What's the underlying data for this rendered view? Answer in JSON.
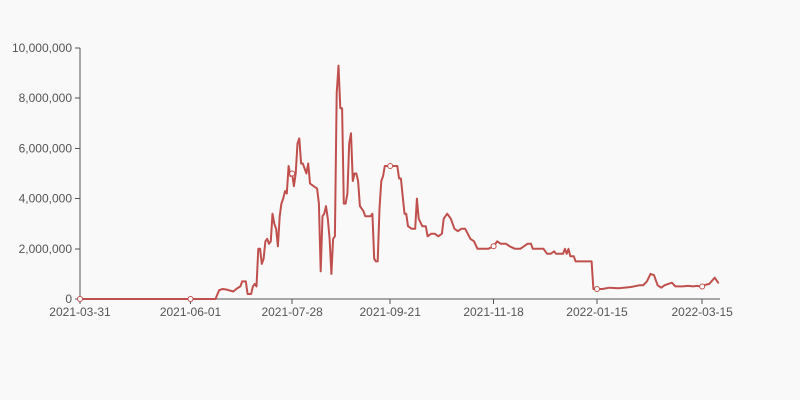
{
  "chart_data": {
    "type": "line",
    "title": "",
    "xlabel": "",
    "ylabel": "",
    "x_start": "2021-03-31",
    "x_end": "2022-03-25",
    "xlim": [
      "2021-03-31",
      "2022-03-25"
    ],
    "ylim": [
      0,
      10000000
    ],
    "x_ticks": [
      "2021-03-31",
      "2021-06-01",
      "2021-07-28",
      "2021-09-21",
      "2021-11-18",
      "2022-01-15",
      "2022-03-15"
    ],
    "y_ticks": [
      "0",
      "2,000,000",
      "4,000,000",
      "6,000,000",
      "8,000,000",
      "10,000,000"
    ],
    "y_tick_values": [
      0,
      2000000,
      4000000,
      6000000,
      8000000,
      10000000
    ],
    "grid": false,
    "legend": "none",
    "line_color": "#c0504d",
    "series": [
      {
        "points": [
          [
            "2021-03-31",
            0
          ],
          [
            "2021-04-20",
            0
          ],
          [
            "2021-05-10",
            0
          ],
          [
            "2021-06-01",
            0
          ],
          [
            "2021-06-15",
            0
          ],
          [
            "2021-06-17",
            350000
          ],
          [
            "2021-06-19",
            400000
          ],
          [
            "2021-06-21",
            380000
          ],
          [
            "2021-06-25",
            300000
          ],
          [
            "2021-06-27",
            420000
          ],
          [
            "2021-06-29",
            500000
          ],
          [
            "2021-06-30",
            700000
          ],
          [
            "2021-07-02",
            700000
          ],
          [
            "2021-07-03",
            200000
          ],
          [
            "2021-07-05",
            200000
          ],
          [
            "2021-07-06",
            500000
          ],
          [
            "2021-07-07",
            600000
          ],
          [
            "2021-07-08",
            500000
          ],
          [
            "2021-07-09",
            2000000
          ],
          [
            "2021-07-10",
            2000000
          ],
          [
            "2021-07-11",
            1400000
          ],
          [
            "2021-07-12",
            1600000
          ],
          [
            "2021-07-13",
            2300000
          ],
          [
            "2021-07-14",
            2400000
          ],
          [
            "2021-07-15",
            2200000
          ],
          [
            "2021-07-16",
            2300000
          ],
          [
            "2021-07-17",
            3400000
          ],
          [
            "2021-07-18",
            3000000
          ],
          [
            "2021-07-19",
            2800000
          ],
          [
            "2021-07-20",
            2100000
          ],
          [
            "2021-07-21",
            3300000
          ],
          [
            "2021-07-22",
            3800000
          ],
          [
            "2021-07-23",
            4000000
          ],
          [
            "2021-07-24",
            4300000
          ],
          [
            "2021-07-25",
            4200000
          ],
          [
            "2021-07-26",
            5300000
          ],
          [
            "2021-07-27",
            4900000
          ],
          [
            "2021-07-28",
            5000000
          ],
          [
            "2021-07-29",
            4500000
          ],
          [
            "2021-07-30",
            5000000
          ],
          [
            "2021-07-31",
            6200000
          ],
          [
            "2021-08-01",
            6400000
          ],
          [
            "2021-08-02",
            5400000
          ],
          [
            "2021-08-03",
            5400000
          ],
          [
            "2021-08-04",
            5200000
          ],
          [
            "2021-08-05",
            5000000
          ],
          [
            "2021-08-06",
            5400000
          ],
          [
            "2021-08-07",
            4600000
          ],
          [
            "2021-08-09",
            4500000
          ],
          [
            "2021-08-11",
            4400000
          ],
          [
            "2021-08-12",
            3800000
          ],
          [
            "2021-08-13",
            1100000
          ],
          [
            "2021-08-14",
            3300000
          ],
          [
            "2021-08-15",
            3400000
          ],
          [
            "2021-08-16",
            3700000
          ],
          [
            "2021-08-17",
            3200000
          ],
          [
            "2021-08-18",
            2400000
          ],
          [
            "2021-08-19",
            1000000
          ],
          [
            "2021-08-20",
            2400000
          ],
          [
            "2021-08-21",
            2500000
          ],
          [
            "2021-08-22",
            8200000
          ],
          [
            "2021-08-23",
            9300000
          ],
          [
            "2021-08-24",
            7600000
          ],
          [
            "2021-08-25",
            7600000
          ],
          [
            "2021-08-26",
            3800000
          ],
          [
            "2021-08-27",
            3800000
          ],
          [
            "2021-08-28",
            4200000
          ],
          [
            "2021-08-29",
            6200000
          ],
          [
            "2021-08-30",
            6600000
          ],
          [
            "2021-08-31",
            4700000
          ],
          [
            "2021-09-01",
            5000000
          ],
          [
            "2021-09-02",
            5000000
          ],
          [
            "2021-09-03",
            4700000
          ],
          [
            "2021-09-04",
            3700000
          ],
          [
            "2021-09-06",
            3500000
          ],
          [
            "2021-09-07",
            3300000
          ],
          [
            "2021-09-10",
            3300000
          ],
          [
            "2021-09-11",
            3400000
          ],
          [
            "2021-09-12",
            1600000
          ],
          [
            "2021-09-13",
            1500000
          ],
          [
            "2021-09-14",
            1500000
          ],
          [
            "2021-09-15",
            3600000
          ],
          [
            "2021-09-16",
            4700000
          ],
          [
            "2021-09-17",
            4900000
          ],
          [
            "2021-09-18",
            5300000
          ],
          [
            "2021-09-25",
            5300000
          ],
          [
            "2021-09-26",
            4800000
          ],
          [
            "2021-09-27",
            4800000
          ],
          [
            "2021-09-29",
            3400000
          ],
          [
            "2021-09-30",
            3400000
          ],
          [
            "2021-10-01",
            2900000
          ],
          [
            "2021-10-03",
            2800000
          ],
          [
            "2021-10-05",
            2800000
          ],
          [
            "2021-10-06",
            4000000
          ],
          [
            "2021-10-07",
            3200000
          ],
          [
            "2021-10-09",
            2900000
          ],
          [
            "2021-10-11",
            2900000
          ],
          [
            "2021-10-12",
            2500000
          ],
          [
            "2021-10-14",
            2600000
          ],
          [
            "2021-10-16",
            2600000
          ],
          [
            "2021-10-18",
            2500000
          ],
          [
            "2021-10-20",
            2600000
          ],
          [
            "2021-10-21",
            3200000
          ],
          [
            "2021-10-23",
            3400000
          ],
          [
            "2021-10-25",
            3200000
          ],
          [
            "2021-10-27",
            2800000
          ],
          [
            "2021-10-29",
            2700000
          ],
          [
            "2021-10-31",
            2800000
          ],
          [
            "2021-11-02",
            2800000
          ],
          [
            "2021-11-05",
            2400000
          ],
          [
            "2021-11-07",
            2300000
          ],
          [
            "2021-11-09",
            2000000
          ],
          [
            "2021-11-11",
            2000000
          ],
          [
            "2021-11-15",
            2000000
          ],
          [
            "2021-11-18",
            2100000
          ],
          [
            "2021-11-20",
            2300000
          ],
          [
            "2021-11-22",
            2200000
          ],
          [
            "2021-11-25",
            2200000
          ],
          [
            "2021-11-27",
            2100000
          ],
          [
            "2021-11-30",
            2000000
          ],
          [
            "2021-12-03",
            2000000
          ],
          [
            "2021-12-05",
            2100000
          ],
          [
            "2021-12-07",
            2200000
          ],
          [
            "2021-12-09",
            2200000
          ],
          [
            "2021-12-10",
            2000000
          ],
          [
            "2021-12-14",
            2000000
          ],
          [
            "2021-12-16",
            2000000
          ],
          [
            "2021-12-18",
            1800000
          ],
          [
            "2021-12-20",
            1800000
          ],
          [
            "2021-12-22",
            1900000
          ],
          [
            "2021-12-23",
            1800000
          ],
          [
            "2021-12-25",
            1800000
          ],
          [
            "2021-12-27",
            1800000
          ],
          [
            "2021-12-28",
            2000000
          ],
          [
            "2021-12-29",
            1800000
          ],
          [
            "2021-12-30",
            2000000
          ],
          [
            "2021-12-31",
            1700000
          ],
          [
            "2022-01-02",
            1700000
          ],
          [
            "2022-01-03",
            1500000
          ],
          [
            "2022-01-05",
            1500000
          ],
          [
            "2022-01-12",
            1500000
          ],
          [
            "2022-01-13",
            400000
          ],
          [
            "2022-01-18",
            400000
          ],
          [
            "2022-01-22",
            450000
          ],
          [
            "2022-01-27",
            430000
          ],
          [
            "2022-01-30",
            450000
          ],
          [
            "2022-02-03",
            480000
          ],
          [
            "2022-02-08",
            550000
          ],
          [
            "2022-02-10",
            550000
          ],
          [
            "2022-02-12",
            700000
          ],
          [
            "2022-02-14",
            1000000
          ],
          [
            "2022-02-16",
            950000
          ],
          [
            "2022-02-18",
            550000
          ],
          [
            "2022-02-20",
            450000
          ],
          [
            "2022-02-22",
            550000
          ],
          [
            "2022-02-24",
            600000
          ],
          [
            "2022-02-26",
            650000
          ],
          [
            "2022-02-28",
            500000
          ],
          [
            "2022-03-04",
            500000
          ],
          [
            "2022-03-07",
            520000
          ],
          [
            "2022-03-10",
            500000
          ],
          [
            "2022-03-12",
            520000
          ],
          [
            "2022-03-14",
            500000
          ],
          [
            "2022-03-16",
            550000
          ],
          [
            "2022-03-19",
            600000
          ],
          [
            "2022-03-22",
            850000
          ],
          [
            "2022-03-24",
            650000
          ]
        ]
      }
    ]
  }
}
